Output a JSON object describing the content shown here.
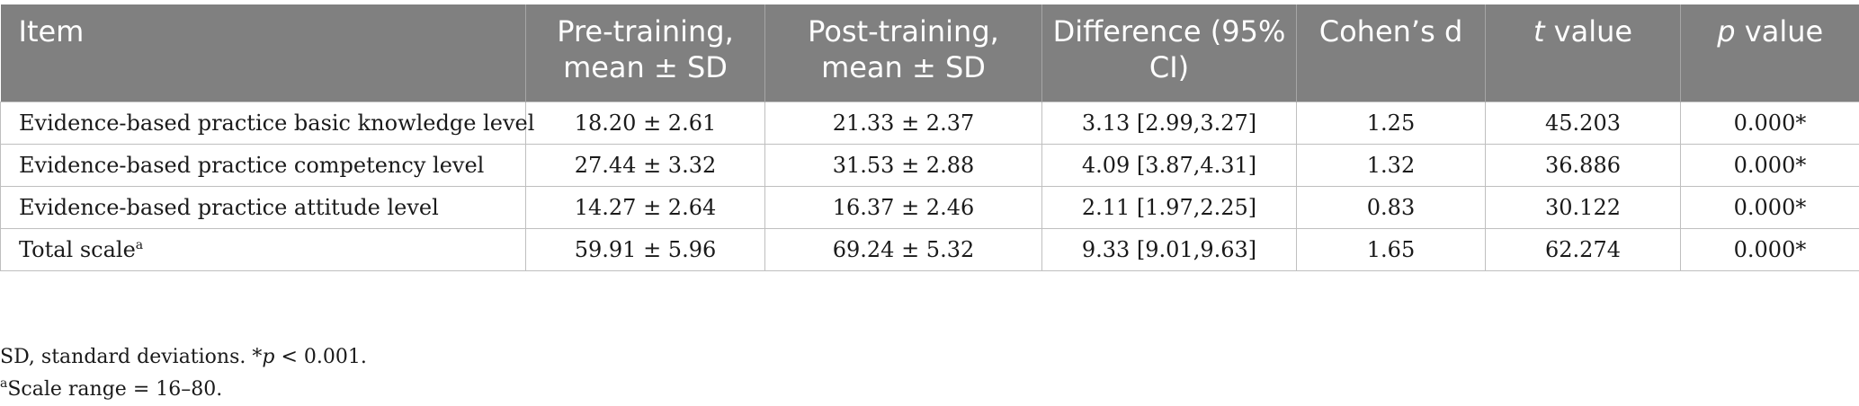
{
  "table": {
    "headers": {
      "item": "Item",
      "pre": "Pre-training, mean ± SD",
      "post": "Post-training, mean ± SD",
      "diff": "Difference (95% CI)",
      "cohen": "Cohen’s d",
      "t_italic": "t",
      "t_rest": " value",
      "p_italic": "p",
      "p_rest": " value"
    },
    "rows": [
      {
        "item": "Evidence-based practice basic knowledge level",
        "pre": "18.20 ± 2.61",
        "post": "21.33 ± 2.37",
        "diff": "3.13 [2.99,3.27]",
        "d": "1.25",
        "t": "45.203",
        "p": "0.000*"
      },
      {
        "item": "Evidence-based practice competency level",
        "pre": "27.44 ± 3.32",
        "post": "31.53 ± 2.88",
        "diff": "4.09 [3.87,4.31]",
        "d": "1.32",
        "t": "36.886",
        "p": "0.000*"
      },
      {
        "item": "Evidence-based practice attitude level",
        "pre": "14.27 ± 2.64",
        "post": "16.37 ± 2.46",
        "diff": "2.11 [1.97,2.25]",
        "d": "0.83",
        "t": "30.122",
        "p": "0.000*"
      },
      {
        "item": "Total scale",
        "item_sup": "a",
        "pre": "59.91 ± 5.96",
        "post": "69.24 ± 5.32",
        "diff": "9.33 [9.01,9.63]",
        "d": "1.65",
        "t": "62.274",
        "p": "0.000*"
      }
    ]
  },
  "footnotes": {
    "line1_a": "SD, standard deviations. *",
    "line1_italic": "p",
    "line1_b": " < 0.001.",
    "line2_sup": "a",
    "line2": "Scale range = 16–80."
  }
}
